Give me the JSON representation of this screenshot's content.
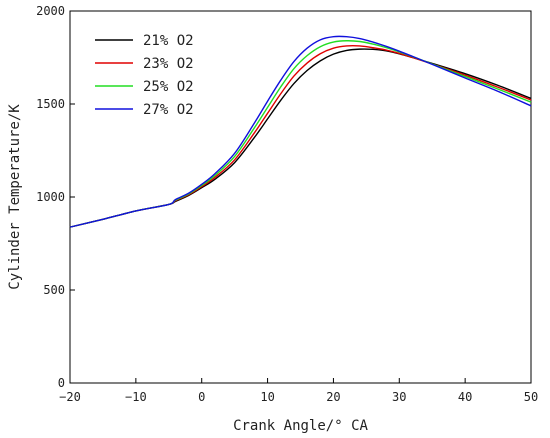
{
  "chart_data": {
    "type": "line",
    "xlabel": "Crank Angle/° CA",
    "ylabel": "Cylinder Temperature/K",
    "xlim": [
      -20,
      50
    ],
    "ylim": [
      0,
      2000
    ],
    "xticks": [
      -20,
      -10,
      0,
      10,
      20,
      30,
      40,
      50
    ],
    "yticks": [
      0,
      500,
      1000,
      1500,
      2000
    ],
    "grid": false,
    "legend_position": "top-left",
    "series": [
      {
        "name": "21% O2",
        "color": "#000000",
        "points": [
          [
            -20,
            838
          ],
          [
            -15,
            880
          ],
          [
            -10,
            925
          ],
          [
            -5,
            960
          ],
          [
            -4,
            976
          ],
          [
            -2,
            1008
          ],
          [
            0,
            1050
          ],
          [
            2,
            1095
          ],
          [
            5,
            1185
          ],
          [
            8,
            1320
          ],
          [
            10,
            1420
          ],
          [
            12,
            1520
          ],
          [
            14,
            1610
          ],
          [
            16,
            1680
          ],
          [
            18,
            1732
          ],
          [
            20,
            1768
          ],
          [
            22,
            1788
          ],
          [
            24,
            1795
          ],
          [
            26,
            1794
          ],
          [
            28,
            1786
          ],
          [
            30,
            1770
          ],
          [
            32,
            1750
          ],
          [
            35,
            1718
          ],
          [
            40,
            1663
          ],
          [
            45,
            1600
          ],
          [
            50,
            1530
          ]
        ]
      },
      {
        "name": "23% O2",
        "color": "#e00000",
        "points": [
          [
            -20,
            838
          ],
          [
            -15,
            880
          ],
          [
            -10,
            925
          ],
          [
            -5,
            960
          ],
          [
            -4,
            980
          ],
          [
            -2,
            1012
          ],
          [
            0,
            1056
          ],
          [
            2,
            1105
          ],
          [
            5,
            1200
          ],
          [
            8,
            1345
          ],
          [
            10,
            1450
          ],
          [
            12,
            1555
          ],
          [
            14,
            1650
          ],
          [
            16,
            1720
          ],
          [
            18,
            1770
          ],
          [
            20,
            1800
          ],
          [
            22,
            1812
          ],
          [
            24,
            1812
          ],
          [
            26,
            1803
          ],
          [
            28,
            1790
          ],
          [
            30,
            1772
          ],
          [
            32,
            1750
          ],
          [
            35,
            1715
          ],
          [
            40,
            1655
          ],
          [
            45,
            1590
          ],
          [
            50,
            1522
          ]
        ]
      },
      {
        "name": "25% O2",
        "color": "#22dd22",
        "points": [
          [
            -20,
            838
          ],
          [
            -15,
            880
          ],
          [
            -10,
            925
          ],
          [
            -5,
            960
          ],
          [
            -4,
            983
          ],
          [
            -2,
            1016
          ],
          [
            0,
            1062
          ],
          [
            2,
            1115
          ],
          [
            5,
            1218
          ],
          [
            8,
            1372
          ],
          [
            10,
            1482
          ],
          [
            12,
            1592
          ],
          [
            14,
            1690
          ],
          [
            16,
            1760
          ],
          [
            18,
            1808
          ],
          [
            20,
            1833
          ],
          [
            22,
            1840
          ],
          [
            24,
            1836
          ],
          [
            26,
            1822
          ],
          [
            28,
            1803
          ],
          [
            30,
            1780
          ],
          [
            32,
            1755
          ],
          [
            35,
            1715
          ],
          [
            40,
            1648
          ],
          [
            45,
            1580
          ],
          [
            50,
            1510
          ]
        ]
      },
      {
        "name": "27% O2",
        "color": "#1010dd",
        "points": [
          [
            -20,
            838
          ],
          [
            -15,
            880
          ],
          [
            -10,
            925
          ],
          [
            -5,
            960
          ],
          [
            -4,
            986
          ],
          [
            -2,
            1020
          ],
          [
            0,
            1068
          ],
          [
            2,
            1125
          ],
          [
            5,
            1235
          ],
          [
            8,
            1398
          ],
          [
            10,
            1515
          ],
          [
            12,
            1628
          ],
          [
            14,
            1728
          ],
          [
            16,
            1800
          ],
          [
            18,
            1845
          ],
          [
            20,
            1862
          ],
          [
            22,
            1862
          ],
          [
            24,
            1852
          ],
          [
            26,
            1833
          ],
          [
            28,
            1810
          ],
          [
            30,
            1784
          ],
          [
            32,
            1756
          ],
          [
            35,
            1713
          ],
          [
            40,
            1640
          ],
          [
            45,
            1568
          ],
          [
            50,
            1490
          ]
        ]
      }
    ]
  }
}
